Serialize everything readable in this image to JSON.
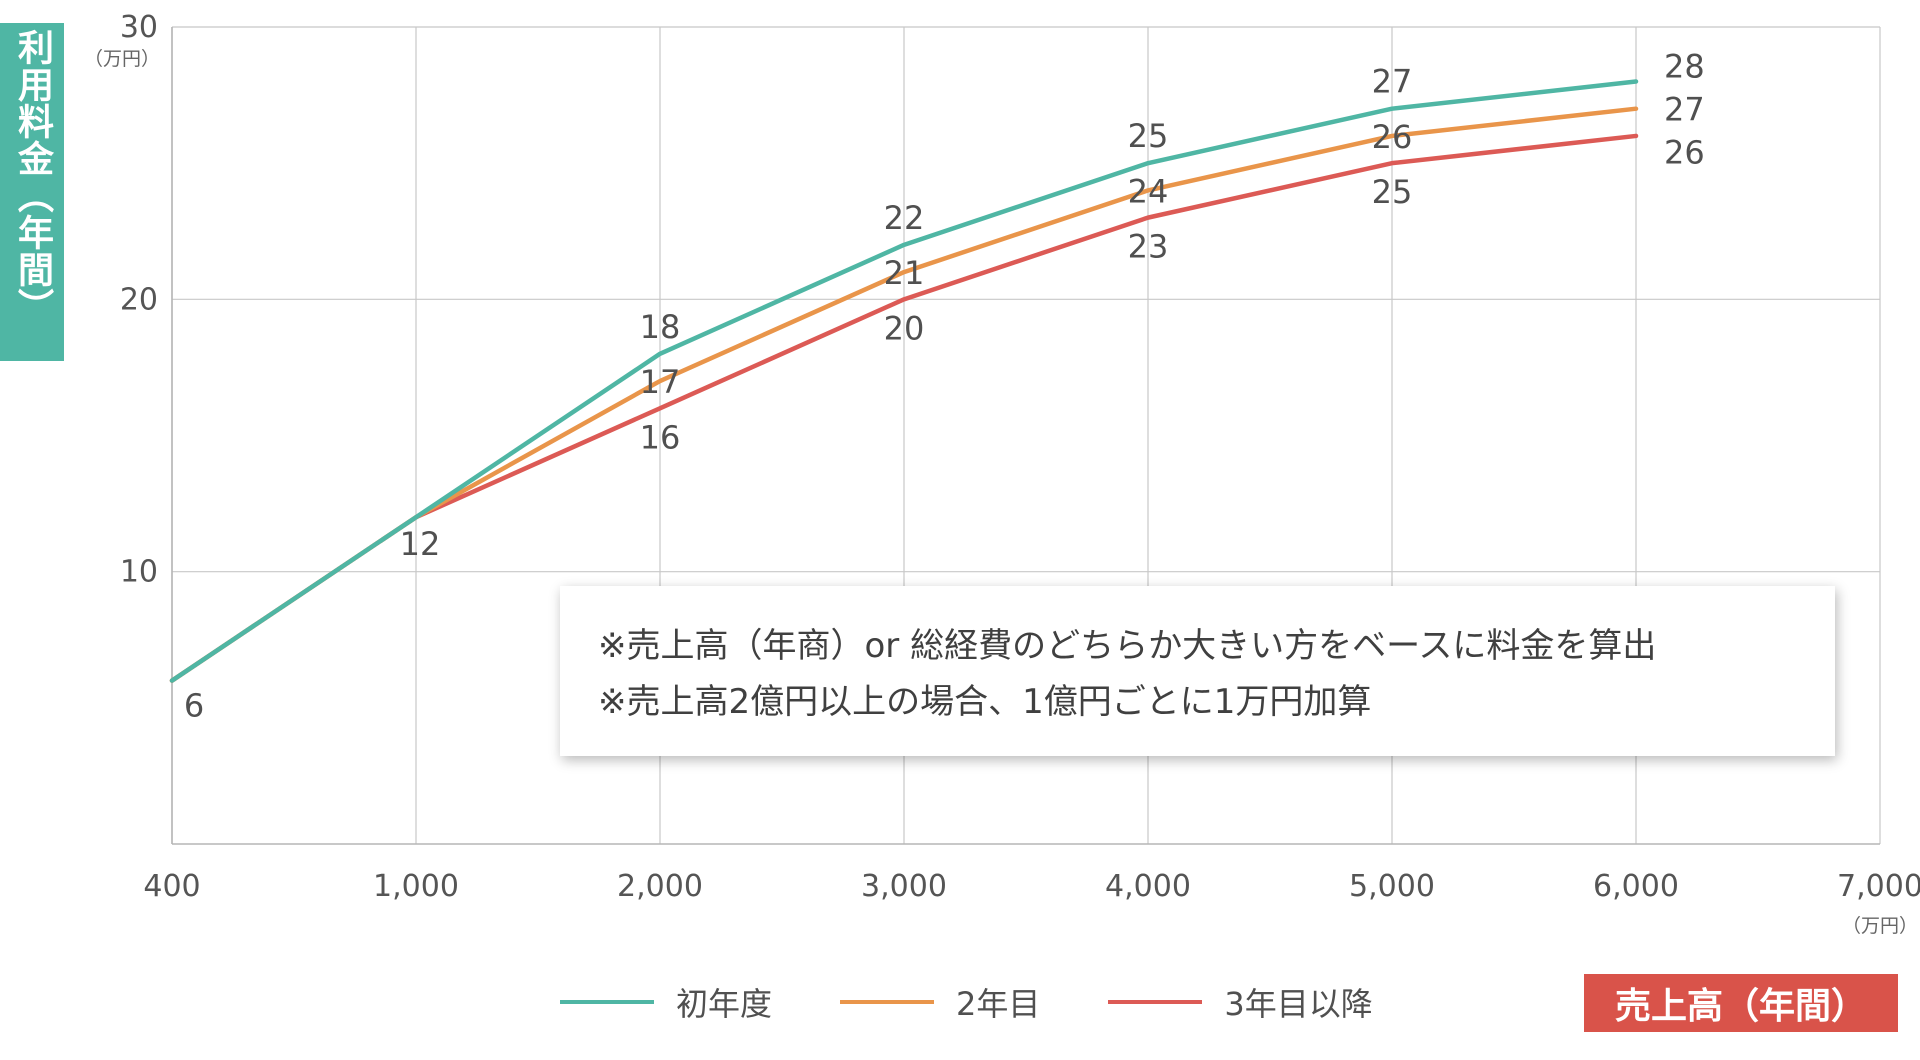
{
  "chart_data": {
    "type": "line",
    "ylabel": "利用料金（年間）",
    "xlabel": "売上高（年間）",
    "x_unit": "（万円）",
    "y_unit": "（万円）",
    "x": [
      400,
      1000,
      2000,
      3000,
      4000,
      5000,
      6000
    ],
    "x_tick_labels": [
      "400",
      "1,000",
      "2,000",
      "3,000",
      "4,000",
      "5,000",
      "6,000",
      "7,000"
    ],
    "y_tick_labels": [
      "10",
      "20",
      "30"
    ],
    "xlim": [
      400,
      7000
    ],
    "ylim": [
      0,
      30
    ],
    "grid": true,
    "series": [
      {
        "name": "初年度",
        "color": "#4fb6a4",
        "values": [
          6,
          12,
          18,
          22,
          25,
          27,
          28
        ]
      },
      {
        "name": "2年目",
        "color": "#e9954a",
        "values": [
          6,
          12,
          17,
          21,
          24,
          26,
          27
        ]
      },
      {
        "name": "3年目以降",
        "color": "#dc5a55",
        "values": [
          6,
          12,
          16,
          20,
          23,
          25,
          26
        ]
      }
    ],
    "data_labels": [
      {
        "x": 400,
        "y": 6,
        "text": "6"
      },
      {
        "x": 1000,
        "y": 12,
        "text": "12"
      },
      {
        "x": 2000,
        "y": 18,
        "text": "18"
      },
      {
        "x": 2000,
        "y": 17,
        "text": "17"
      },
      {
        "x": 2000,
        "y": 16,
        "text": "16"
      },
      {
        "x": 3000,
        "y": 22,
        "text": "22"
      },
      {
        "x": 3000,
        "y": 21,
        "text": "21"
      },
      {
        "x": 3000,
        "y": 20,
        "text": "20"
      },
      {
        "x": 4000,
        "y": 25,
        "text": "25"
      },
      {
        "x": 4000,
        "y": 24,
        "text": "24"
      },
      {
        "x": 4000,
        "y": 23,
        "text": "23"
      },
      {
        "x": 5000,
        "y": 27,
        "text": "27"
      },
      {
        "x": 5000,
        "y": 26,
        "text": "26"
      },
      {
        "x": 5000,
        "y": 25,
        "text": "25"
      },
      {
        "x": 6000,
        "y": 28,
        "text": "28"
      },
      {
        "x": 6000,
        "y": 27,
        "text": "27"
      },
      {
        "x": 6000,
        "y": 26,
        "text": "26"
      }
    ],
    "legend_placement": "bottom-center",
    "notes": [
      "※売上高（年商）or 総経費のどちらか大きい方をベースに料金を算出",
      "※売上高2億円以上の場合、1億円ごとに1万円加算"
    ]
  }
}
